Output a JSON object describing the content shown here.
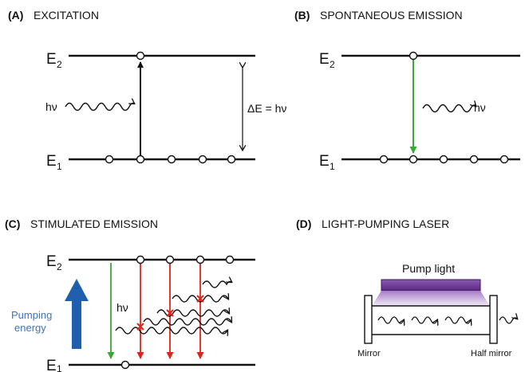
{
  "panels": {
    "a": {
      "letter": "(A)",
      "title": "EXCITATION",
      "upper_level": "E",
      "upper_sub": "2",
      "lower_level": "E",
      "lower_sub": "1",
      "photon": "hν",
      "energy_gap": "ΔE = hν"
    },
    "b": {
      "letter": "(B)",
      "title": "SPONTANEOUS EMISSION",
      "upper_level": "E",
      "upper_sub": "2",
      "lower_level": "E",
      "lower_sub": "1",
      "photon": "hν"
    },
    "c": {
      "letter": "(C)",
      "title": "STIMULATED EMISSION",
      "upper_level": "E",
      "upper_sub": "2",
      "lower_level": "E",
      "lower_sub": "1",
      "photon": "hν",
      "pumping_line1": "Pumping",
      "pumping_line2": "energy"
    },
    "d": {
      "letter": "(D)",
      "title": "LIGHT-PUMPING LASER",
      "pump_label": "Pump light",
      "mirror_label": "Mirror",
      "half_mirror_label": "Half mirror"
    }
  },
  "colors": {
    "line": "#111111",
    "emission_green": "#39a935",
    "stimulated_red": "#e2231a",
    "pump_arrow_blue": "#1f5fae",
    "pump_purple": "#6a2c8c",
    "pump_gradient_light": "#efe4f5"
  }
}
